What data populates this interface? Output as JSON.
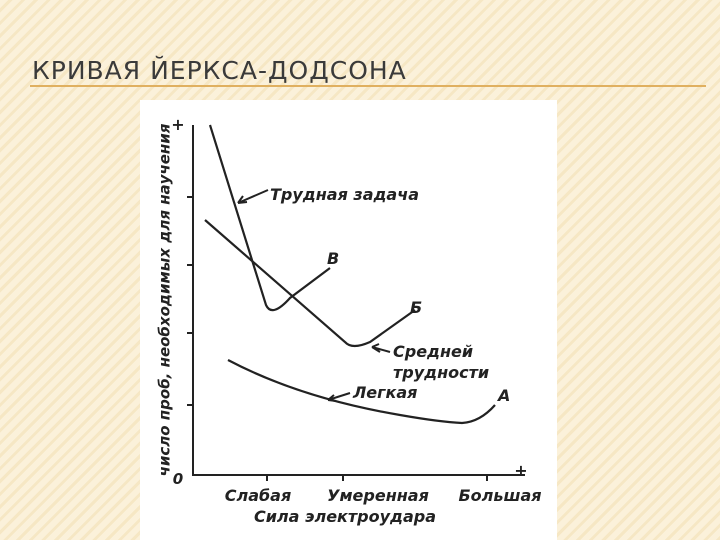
{
  "slide": {
    "title": "КРИВАЯ ЙЕРКСА-ДОДСОНА"
  },
  "figure": {
    "y_axis_label": "число проб, необходимых для научения",
    "y_axis_top": "+",
    "origin": "0",
    "x_axis_end": "+",
    "x_categories": [
      "Слабая",
      "Умеренная",
      "Большая"
    ],
    "x_axis_label": "Сила электроудара",
    "curves": [
      {
        "name": "Трудная задача",
        "letter": "В"
      },
      {
        "name_lines": [
          "Средней",
          "трудности"
        ],
        "letter": "Б"
      },
      {
        "name": "Легкая",
        "letter": "А"
      }
    ]
  }
}
